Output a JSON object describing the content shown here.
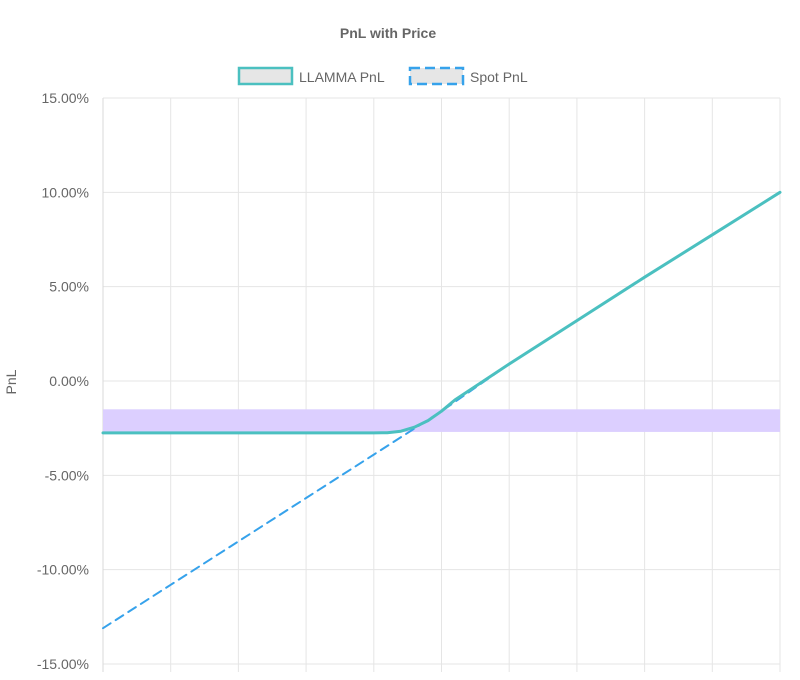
{
  "chart_data": {
    "type": "line",
    "title": "PnL with Price",
    "xlabel": "",
    "ylabel": "PnL",
    "ylim": [
      -15,
      15
    ],
    "y_ticks": [
      "15.00%",
      "10.00%",
      "5.00%",
      "0.00%",
      "-5.00%",
      "-10.00%",
      "-15.00%"
    ],
    "y_tick_values": [
      15,
      10,
      5,
      0,
      -5,
      -10,
      -15
    ],
    "x_range": [
      0,
      10
    ],
    "x_grid_count": 10,
    "grid": true,
    "legend_position": "top-center",
    "band": {
      "y_from": -2.7,
      "y_to": -1.5,
      "color": "#dccfff"
    },
    "series": [
      {
        "name": "LLAMMA PnL",
        "style": "solid",
        "color": "#4bc0c0",
        "x": [
          0,
          1,
          2,
          3,
          4,
          4.2,
          4.4,
          4.6,
          4.8,
          5.0,
          5.2,
          6,
          7,
          8,
          9,
          10
        ],
        "y": [
          -2.75,
          -2.75,
          -2.75,
          -2.75,
          -2.75,
          -2.74,
          -2.66,
          -2.45,
          -2.1,
          -1.6,
          -1.0,
          0.9,
          3.2,
          5.5,
          7.75,
          10.0
        ]
      },
      {
        "name": "Spot PnL",
        "style": "dashed",
        "color": "#36a2eb",
        "x": [
          0,
          1,
          2,
          3,
          4,
          5,
          6,
          7,
          8,
          9,
          10
        ],
        "y": [
          -13.1,
          -10.8,
          -8.5,
          -6.2,
          -3.9,
          -1.6,
          0.9,
          3.2,
          5.5,
          7.75,
          10.0
        ]
      }
    ]
  }
}
